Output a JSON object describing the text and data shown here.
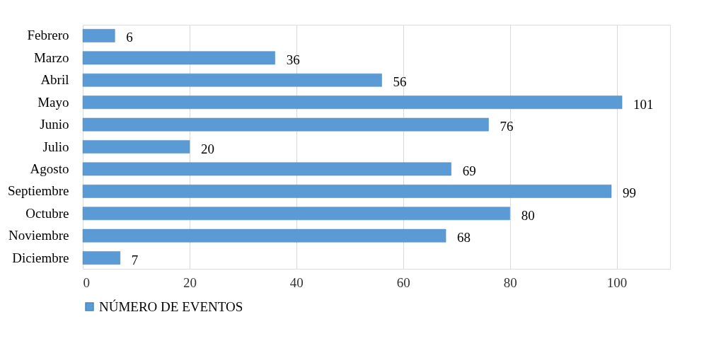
{
  "chart_data": {
    "type": "bar",
    "orientation": "horizontal",
    "categories": [
      "Febrero",
      "Marzo",
      "Abril",
      "Mayo",
      "Junio",
      "Julio",
      "Agosto",
      "Septiembre",
      "Octubre",
      "Noviembre",
      "Diciembre"
    ],
    "series": [
      {
        "name": "NÚMERO DE EVENTOS",
        "color": "#5b9bd5",
        "values": [
          6,
          36,
          56,
          101,
          76,
          20,
          69,
          99,
          80,
          68,
          7
        ]
      }
    ],
    "xlim": [
      0,
      110
    ],
    "xticks": [
      0,
      20,
      40,
      60,
      80,
      100
    ],
    "grid": "x",
    "legend": "bottom",
    "data_labels": true
  }
}
